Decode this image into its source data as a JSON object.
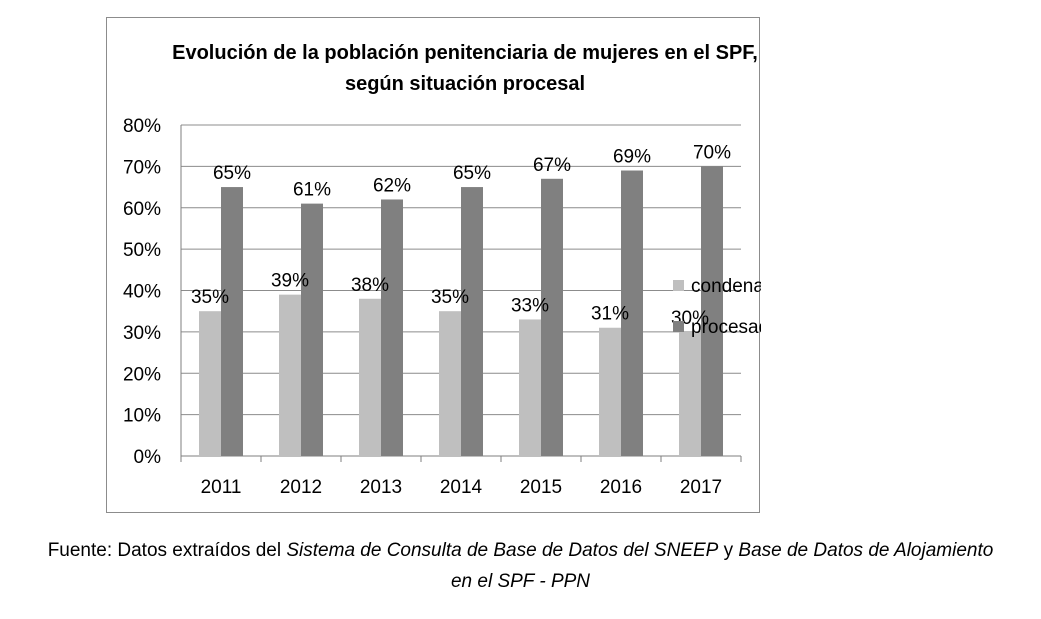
{
  "chart_data": {
    "type": "bar",
    "title": [
      "Evolución de la población penitenciaria de mujeres en el SPF,",
      "según situación procesal"
    ],
    "categories": [
      "2011",
      "2012",
      "2013",
      "2014",
      "2015",
      "2016",
      "2017"
    ],
    "series": [
      {
        "name": "condenadas",
        "color": "#bfbfbf",
        "values": [
          35,
          39,
          38,
          35,
          33,
          31,
          30
        ],
        "labels": [
          "35%",
          "39%",
          "38%",
          "35%",
          "33%",
          "31%",
          "30%"
        ]
      },
      {
        "name": "procesadas",
        "color": "#808080",
        "values": [
          65,
          61,
          62,
          65,
          67,
          69,
          70
        ],
        "labels": [
          "65%",
          "61%",
          "62%",
          "65%",
          "67%",
          "69%",
          "70%"
        ]
      }
    ],
    "ylim": [
      0,
      80
    ],
    "yticks": [
      0,
      10,
      20,
      30,
      40,
      50,
      60,
      70,
      80
    ],
    "ytick_labels": [
      "0%",
      "10%",
      "20%",
      "30%",
      "40%",
      "50%",
      "60%",
      "70%",
      "80%"
    ],
    "grid": true,
    "legend": "right"
  },
  "caption": {
    "prefix": "Fuente: Datos extraídos del ",
    "source1": "Sistema de Consulta de Base de Datos del SNEEP",
    "conj": " y ",
    "source2a": "Base de Datos de Alojamiento",
    "source2b": "en el SPF - PPN"
  }
}
